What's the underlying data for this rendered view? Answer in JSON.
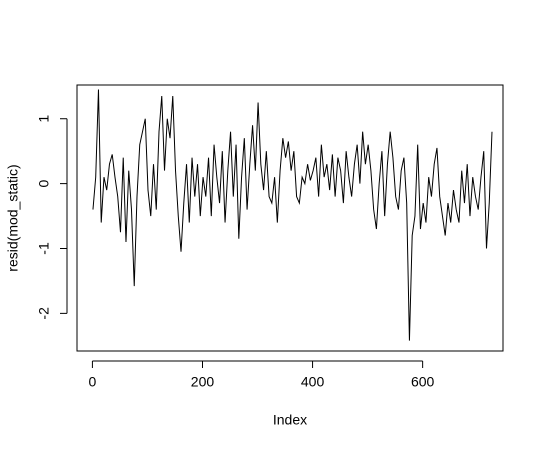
{
  "chart_data": {
    "type": "line",
    "xlabel": "Index",
    "ylabel": "resid(mod_static)",
    "x": [
      1,
      6,
      11,
      16,
      21,
      26,
      31,
      36,
      41,
      46,
      51,
      56,
      61,
      66,
      71,
      76,
      81,
      86,
      91,
      96,
      101,
      106,
      111,
      116,
      121,
      126,
      131,
      136,
      141,
      146,
      151,
      156,
      161,
      166,
      171,
      176,
      181,
      186,
      191,
      196,
      201,
      206,
      211,
      216,
      221,
      226,
      231,
      236,
      241,
      246,
      251,
      256,
      261,
      266,
      271,
      276,
      281,
      286,
      291,
      296,
      301,
      306,
      311,
      316,
      321,
      326,
      331,
      336,
      341,
      346,
      351,
      356,
      361,
      366,
      371,
      376,
      381,
      386,
      391,
      396,
      401,
      406,
      411,
      416,
      421,
      426,
      431,
      436,
      441,
      446,
      451,
      456,
      461,
      466,
      471,
      476,
      481,
      486,
      491,
      496,
      501,
      506,
      511,
      516,
      521,
      526,
      531,
      536,
      541,
      546,
      551,
      556,
      561,
      566,
      571,
      576,
      581,
      586,
      591,
      596,
      601,
      606,
      611,
      616,
      621,
      626,
      631,
      636,
      641,
      646,
      651,
      656,
      661,
      666,
      671,
      676,
      681,
      686,
      691,
      696,
      701,
      706,
      711,
      716,
      721,
      726
    ],
    "values": [
      -0.4,
      0.1,
      1.45,
      -0.6,
      0.1,
      -0.1,
      0.3,
      0.45,
      0.1,
      -0.2,
      -0.75,
      0.4,
      -0.9,
      0.2,
      -0.4,
      -1.58,
      -0.2,
      0.6,
      0.8,
      1.0,
      -0.1,
      -0.5,
      0.3,
      -0.4,
      0.8,
      1.35,
      0.2,
      1.0,
      0.7,
      1.35,
      0.2,
      -0.5,
      -1.05,
      -0.3,
      0.3,
      -0.6,
      0.4,
      -0.2,
      0.3,
      -0.5,
      0.1,
      -0.2,
      0.4,
      -0.5,
      0.6,
      0.1,
      -0.3,
      0.5,
      -0.6,
      0.2,
      0.8,
      -0.2,
      0.6,
      -0.85,
      0.1,
      0.7,
      -0.4,
      0.3,
      0.9,
      0.2,
      1.25,
      0.3,
      -0.1,
      0.5,
      -0.2,
      -0.3,
      0.1,
      -0.6,
      0.2,
      0.7,
      0.4,
      0.65,
      0.2,
      0.5,
      -0.2,
      -0.3,
      0.1,
      0.0,
      0.3,
      0.05,
      0.2,
      0.4,
      -0.2,
      0.6,
      0.1,
      0.3,
      -0.1,
      0.45,
      -0.2,
      0.4,
      0.2,
      -0.3,
      0.5,
      0.1,
      -0.2,
      0.3,
      0.6,
      0.0,
      0.8,
      0.3,
      0.6,
      0.2,
      -0.4,
      -0.7,
      0.0,
      0.5,
      -0.5,
      0.3,
      0.8,
      0.4,
      -0.2,
      -0.4,
      0.2,
      0.4,
      -0.3,
      -2.42,
      -0.8,
      -0.5,
      0.6,
      -0.7,
      -0.3,
      -0.6,
      0.1,
      -0.2,
      0.3,
      0.55,
      -0.2,
      -0.5,
      -0.8,
      -0.3,
      -0.6,
      -0.1,
      -0.4,
      -0.6,
      0.2,
      -0.3,
      0.3,
      -0.5,
      0.1,
      -0.2,
      -0.4,
      0.1,
      0.5,
      -1.0,
      -0.3,
      0.8
    ],
    "color": "#000000",
    "xlim": [
      -28,
      746
    ],
    "ylim": [
      -2.58,
      1.52
    ],
    "xticks": [
      0,
      200,
      400,
      600
    ],
    "yticks": [
      -2,
      -1,
      0,
      1
    ]
  }
}
